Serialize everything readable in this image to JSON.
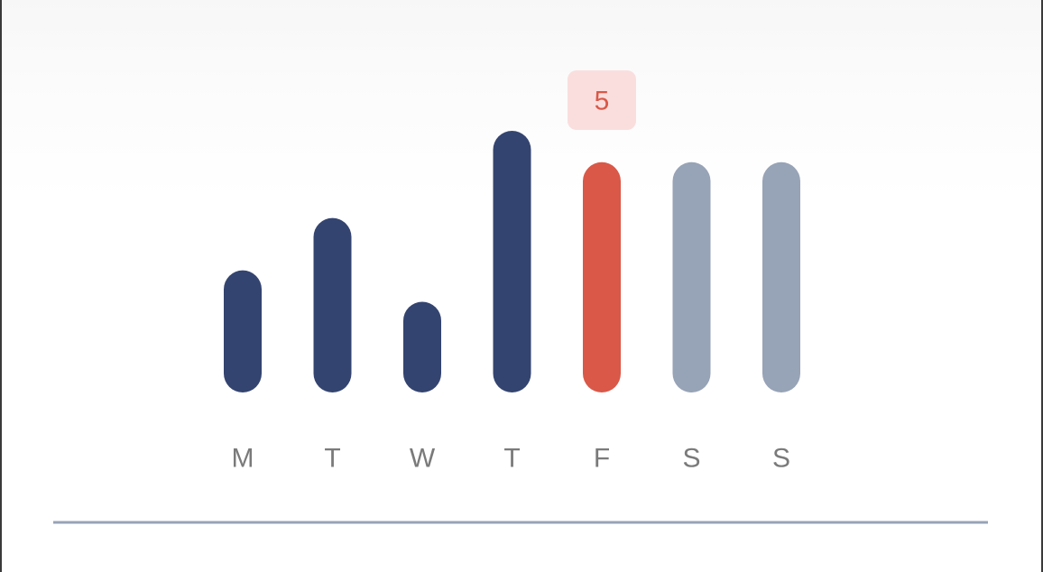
{
  "chart_data": {
    "type": "bar",
    "categories": [
      "M",
      "T",
      "W",
      "T",
      "F",
      "S",
      "S"
    ],
    "values": [
      3.5,
      5.0,
      2.6,
      7.5,
      6.6,
      6.6,
      6.6
    ],
    "ylim": [
      0,
      7.5
    ],
    "grid": false,
    "highlight_index": 4,
    "callout": {
      "index": 4,
      "label": "5"
    },
    "colors": {
      "past": "#344470",
      "highlight": "#d95848",
      "future": "#97a3b6",
      "callout_bg": "#fadede",
      "callout_text": "#d95848",
      "baseline": "#97a3b6",
      "tick_text": "#7a7a7a"
    }
  }
}
